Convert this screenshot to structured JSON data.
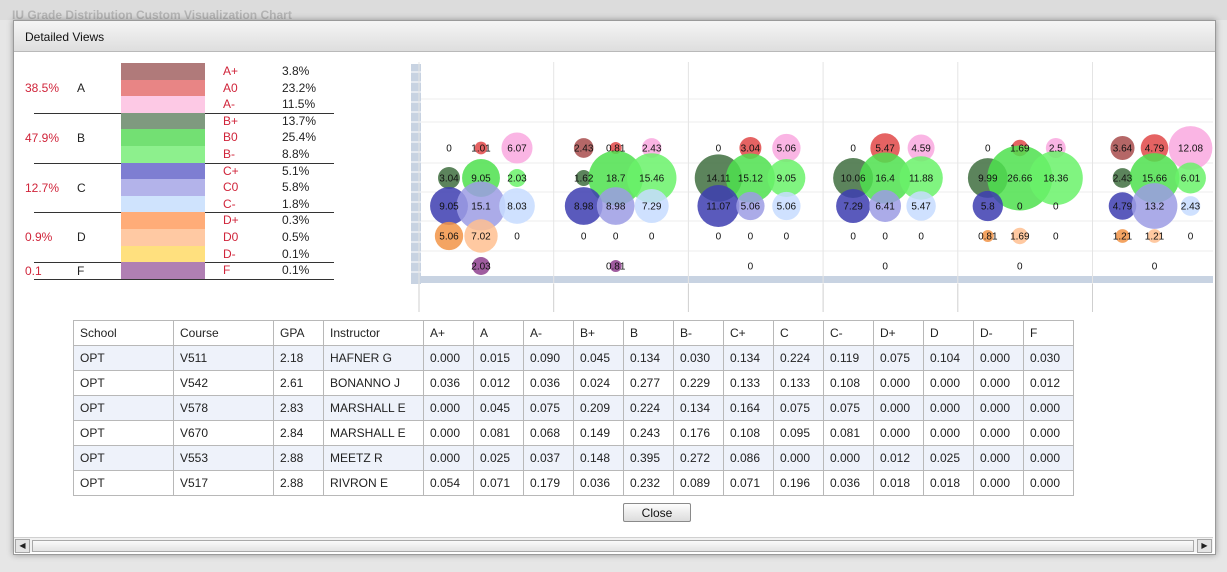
{
  "background_title": "IU Grade Distribution Custom Visualization Chart",
  "dialog": {
    "title": "Detailed Views",
    "close_label": "Close"
  },
  "legend": [
    {
      "group": "A",
      "pct": "38.5%",
      "grades": [
        {
          "g": "A+",
          "v": "3.8%",
          "color": "#b07a7a"
        },
        {
          "g": "A0",
          "v": "23.2%",
          "color": "#e88585"
        },
        {
          "g": "A-",
          "v": "11.5%",
          "color": "#fdc9e5"
        }
      ]
    },
    {
      "group": "B",
      "pct": "47.9%",
      "grades": [
        {
          "g": "B+",
          "v": "13.7%",
          "color": "#7f9a7f"
        },
        {
          "g": "B0",
          "v": "25.4%",
          "color": "#73e073"
        },
        {
          "g": "B-",
          "v": "8.8%",
          "color": "#8df08d"
        }
      ]
    },
    {
      "group": "C",
      "pct": "12.7%",
      "grades": [
        {
          "g": "C+",
          "v": "5.1%",
          "color": "#7e7ed2"
        },
        {
          "g": "C0",
          "v": "5.8%",
          "color": "#b3b3ea"
        },
        {
          "g": "C-",
          "v": "1.8%",
          "color": "#cfe3fd"
        }
      ]
    },
    {
      "group": "D",
      "pct": "0.9%",
      "grades": [
        {
          "g": "D+",
          "v": "0.3%",
          "color": "#ffac78"
        },
        {
          "g": "D0",
          "v": "0.5%",
          "color": "#ffc9a3"
        },
        {
          "g": "D-",
          "v": "0.1%",
          "color": "#ffe07e"
        }
      ]
    },
    {
      "group": "F",
      "pct": "0.1",
      "grades": [
        {
          "g": "F",
          "v": "0.1%",
          "color": "#b07fb3"
        }
      ]
    }
  ],
  "chart_data": {
    "type": "scatter",
    "title": "",
    "row_colors": [
      [
        "#a84c4c",
        "#e04848",
        "#f9a8df"
      ],
      [
        "#3f6e3f",
        "#4ee04e",
        "#6af26a"
      ],
      [
        "#3d3db0",
        "#9c9ce4",
        "#c7dcff"
      ],
      [
        "#f29447",
        "#ffbf90",
        "#ffe07e"
      ],
      [
        "#8e3f8e"
      ]
    ],
    "courses": [
      {
        "rows": [
          [
            "0",
            "1.01",
            "6.07"
          ],
          [
            "3.04",
            "9.05",
            "2.03"
          ],
          [
            "9.05",
            "15.1",
            "8.03"
          ],
          [
            "5.06",
            "7.02",
            "0"
          ],
          [
            "2.03"
          ]
        ]
      },
      {
        "rows": [
          [
            "2.43",
            "0.81",
            "2.43"
          ],
          [
            "1.62",
            "18.7",
            "15.46"
          ],
          [
            "8.98",
            "8.98",
            "7.29"
          ],
          [
            "0",
            "0",
            "0"
          ],
          [
            "0.81"
          ]
        ]
      },
      {
        "rows": [
          [
            "0",
            "3.04",
            "5.06"
          ],
          [
            "14.11",
            "15.12",
            "9.05"
          ],
          [
            "11.07",
            "5.06",
            "5.06"
          ],
          [
            "0",
            "0",
            "0"
          ],
          [
            "0"
          ]
        ]
      },
      {
        "rows": [
          [
            "0",
            "5.47",
            "4.59"
          ],
          [
            "10.06",
            "16.4",
            "11.88"
          ],
          [
            "7.29",
            "6.41",
            "5.47"
          ],
          [
            "0",
            "0",
            "0"
          ],
          [
            "0"
          ]
        ]
      },
      {
        "rows": [
          [
            "0",
            "1.69",
            "2.5"
          ],
          [
            "9.99",
            "26.66",
            "18.36"
          ],
          [
            "5.8",
            "0",
            "0"
          ],
          [
            "0.81",
            "1.69",
            "0"
          ],
          [
            "0"
          ]
        ]
      },
      {
        "rows": [
          [
            "3.64",
            "4.79",
            "12.08"
          ],
          [
            "2.43",
            "15.66",
            "6.01"
          ],
          [
            "4.79",
            "13.2",
            "2.43"
          ],
          [
            "1.21",
            "1.21",
            "0"
          ],
          [
            "0"
          ]
        ]
      }
    ]
  },
  "table": {
    "headers": [
      "School",
      "Course",
      "GPA",
      "Instructor",
      "A+",
      "A",
      "A-",
      "B+",
      "B",
      "B-",
      "C+",
      "C",
      "C-",
      "D+",
      "D",
      "D-",
      "F"
    ],
    "rows": [
      [
        "OPT",
        "V511",
        "2.18",
        "HAFNER G",
        "0.000",
        "0.015",
        "0.090",
        "0.045",
        "0.134",
        "0.030",
        "0.134",
        "0.224",
        "0.119",
        "0.075",
        "0.104",
        "0.000",
        "0.030"
      ],
      [
        "OPT",
        "V542",
        "2.61",
        "BONANNO J",
        "0.036",
        "0.012",
        "0.036",
        "0.024",
        "0.277",
        "0.229",
        "0.133",
        "0.133",
        "0.108",
        "0.000",
        "0.000",
        "0.000",
        "0.012"
      ],
      [
        "OPT",
        "V578",
        "2.83",
        "MARSHALL E",
        "0.000",
        "0.045",
        "0.075",
        "0.209",
        "0.224",
        "0.134",
        "0.164",
        "0.075",
        "0.075",
        "0.000",
        "0.000",
        "0.000",
        "0.000"
      ],
      [
        "OPT",
        "V670",
        "2.84",
        "MARSHALL E",
        "0.000",
        "0.081",
        "0.068",
        "0.149",
        "0.243",
        "0.176",
        "0.108",
        "0.095",
        "0.081",
        "0.000",
        "0.000",
        "0.000",
        "0.000"
      ],
      [
        "OPT",
        "V553",
        "2.88",
        "MEETZ R",
        "0.000",
        "0.025",
        "0.037",
        "0.148",
        "0.395",
        "0.272",
        "0.086",
        "0.000",
        "0.000",
        "0.012",
        "0.025",
        "0.000",
        "0.000"
      ],
      [
        "OPT",
        "V517",
        "2.88",
        "RIVRON E",
        "0.054",
        "0.071",
        "0.179",
        "0.036",
        "0.232",
        "0.089",
        "0.071",
        "0.196",
        "0.036",
        "0.018",
        "0.018",
        "0.000",
        "0.000"
      ]
    ]
  },
  "scrollbar": {
    "left_icon": "arrow-left-icon",
    "right_icon": "arrow-right-icon"
  }
}
